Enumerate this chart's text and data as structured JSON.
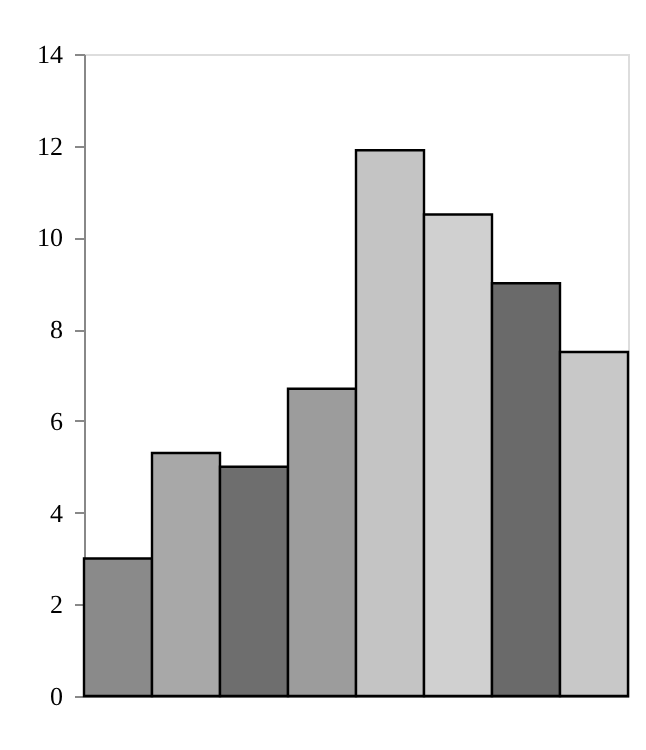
{
  "chart_data": {
    "type": "bar",
    "categories": [
      null,
      null,
      null,
      null,
      null,
      null,
      null,
      null
    ],
    "values": [
      3,
      5.3,
      5,
      6.7,
      11.9,
      10.5,
      9,
      7.5
    ],
    "colors": [
      "#8a8a8a",
      "#a8a8a8",
      "#6e6e6e",
      "#9c9c9c",
      "#c4c4c4",
      "#d0d0d0",
      "#6a6a6a",
      "#c8c8c8"
    ],
    "ylim": [
      0,
      14
    ],
    "yticks": [
      0,
      2,
      4,
      6,
      8,
      10,
      12,
      14
    ],
    "tick_labels": "y",
    "grid": false
  }
}
